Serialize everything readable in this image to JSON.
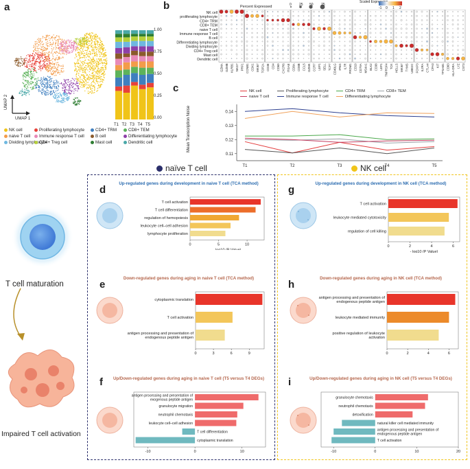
{
  "panel_letters": {
    "a": "a",
    "b": "b",
    "c": "c",
    "d": "d",
    "e": "e",
    "f": "f",
    "g": "g",
    "h": "h",
    "i": "i"
  },
  "umap": {
    "xlabel": "UMAP 1",
    "ylabel": "UMAP 2"
  },
  "stacked": {
    "yticks": [
      "1.00",
      "0.75",
      "0.50",
      "0.25",
      "0.00"
    ],
    "xlabels": [
      "T1",
      "T2",
      "T3",
      "T4",
      "T5"
    ]
  },
  "celltypes": [
    {
      "name": "NK cell",
      "color": "#f0c419"
    },
    {
      "name": "Proliferating lymphocyte",
      "color": "#e8423a"
    },
    {
      "name": "CD4+ TRM",
      "color": "#3f7fbf"
    },
    {
      "name": "CD8+ TEM",
      "color": "#5db35b"
    },
    {
      "name": "naive T cell",
      "color": "#f39c4a"
    },
    {
      "name": "Immune response T cell",
      "color": "#e88ab8"
    },
    {
      "name": "B cell",
      "color": "#8b5a2b"
    },
    {
      "name": "Differentiating lymphocyte",
      "color": "#8e3fa8"
    },
    {
      "name": "Dividing lymphocyte",
      "color": "#6fb8e0"
    },
    {
      "name": "CD4+ Treg cell",
      "color": "#b5cf3a"
    },
    {
      "name": "Mast cell",
      "color": "#2e7d32"
    },
    {
      "name": "Dendritic cell",
      "color": "#4aa8a8"
    }
  ],
  "dotplot": {
    "title_pct": "Percent Expressed",
    "pct_ticks": [
      "0",
      "25",
      "50",
      "75"
    ],
    "title_scaled": "Scaled\nExpression",
    "scale_ticks": [
      "-1",
      "0",
      "1",
      "2"
    ],
    "rows": [
      "NK cell",
      "proliferating lymphocyte",
      "CD4+ TRM",
      "CD8+ TEM",
      "naive T cell",
      "Immune response T cell",
      "B cell",
      "Differentiating lymphocyte",
      "Dividing lymphocyte",
      "CD4+ Treg cell",
      "Mast cell",
      "Dendritic cell"
    ],
    "genes": [
      "GZMA",
      "GZMB",
      "KLRB1",
      "NKG7",
      "PRF1",
      "CCNB1",
      "CDK1",
      "MKI67",
      "TOP2A",
      "CD3E",
      "CD4",
      "CD69",
      "CXCR6",
      "ITGAE",
      "CD8A",
      "CD8B",
      "CCL5",
      "GZMK",
      "CCR7",
      "LEF1",
      "SELL",
      "TCF7",
      "CD40LG",
      "IFNG",
      "IL7R",
      "PRDM1",
      "CD19",
      "CD79A",
      "MS4A1",
      "BLK2",
      "CD38",
      "LEF1",
      "TNFRSF4",
      "TOX",
      "HELLS",
      "MKI67",
      "TYMS",
      "UBE2C",
      "FOXP3",
      "IL2RA",
      "CTLA4",
      "CPA3",
      "KIT",
      "TPSAB1",
      "CD83",
      "HLA-DRA",
      "LYZ",
      "CST3"
    ]
  },
  "linechart": {
    "ylabel": "Mean Transcription Noise",
    "yticks": [
      "0.14",
      "0.13",
      "0.12",
      "0.11"
    ],
    "legend": [
      "NK cell",
      "Proliferating lymphocyte",
      "CD4+ TRM",
      "CD8+ TEM",
      "naive T cell",
      "Immune response T cell",
      "Differentiating lymphocyte"
    ]
  },
  "chart_data": [
    {
      "type": "line",
      "title": "",
      "xlabel": "",
      "ylabel": "Mean Transcription Noise",
      "x": [
        "T1",
        "T2",
        "T3",
        "T4",
        "T5"
      ],
      "ylim": [
        0.105,
        0.145
      ],
      "series": [
        {
          "name": "NK cell",
          "color": "#e23b3b",
          "values": [
            0.1185,
            0.1105,
            0.118,
            0.1125,
            0.115
          ]
        },
        {
          "name": "Proliferating lymphocyte",
          "color": "#555555",
          "values": [
            0.113,
            0.1105,
            0.114,
            0.11,
            0.114
          ]
        },
        {
          "name": "CD4+ TRM",
          "color": "#4aa84a",
          "values": [
            0.1225,
            0.1225,
            0.1235,
            0.12,
            0.1205
          ]
        },
        {
          "name": "CD8+ TEM",
          "color": "#9aa0a6",
          "values": [
            0.12,
            0.1195,
            0.1205,
            0.1175,
            0.1185
          ]
        },
        {
          "name": "naive T cell",
          "color": "#c43c5f",
          "values": [
            0.121,
            0.12,
            0.118,
            0.119,
            0.1195
          ]
        },
        {
          "name": "Immune response T cell",
          "color": "#2b3e8f",
          "values": [
            0.14,
            0.142,
            0.139,
            0.137,
            0.136
          ]
        },
        {
          "name": "Differentiating lymphocyte",
          "color": "#f0a15a",
          "values": [
            0.135,
            0.14,
            0.136,
            0.139,
            0.1385
          ]
        }
      ]
    },
    {
      "type": "bar",
      "id": "d",
      "orientation": "horizontal",
      "title": "Up-regulated genes during development in naive T cell (TCA method)",
      "xlabel": "- log10 (P Value)",
      "xticks": [
        0,
        5,
        10
      ],
      "xlim": [
        0,
        13
      ],
      "categories": [
        "T cell activation",
        "T cell differentiation",
        "regulation of hemopoiesis",
        "leukocyte cell–cell adhesion",
        "lymphocyte proliferation"
      ],
      "values": [
        12.4,
        11.5,
        8.6,
        7.1,
        6.2
      ],
      "colors": [
        "#e8352a",
        "#ec6e2a",
        "#f0a732",
        "#f3c65a",
        "#f1dc8e"
      ]
    },
    {
      "type": "bar",
      "id": "e",
      "orientation": "horizontal",
      "title": "Down-regulated genes during aging in naive T cell (TCA method)",
      "xlabel": "- log10 (P Value)",
      "xticks": [
        0,
        3,
        6,
        9
      ],
      "xlim": [
        0,
        11.5
      ],
      "categories": [
        "cytoplasmic translation",
        "T cell activation",
        "antigen processing and presentation of endogenous peptide antigen"
      ],
      "values": [
        11.2,
        6.2,
        4.9
      ],
      "colors": [
        "#e8352a",
        "#f3c65a",
        "#f1dc8e"
      ]
    },
    {
      "type": "bar",
      "id": "f",
      "orientation": "horizontal",
      "title": "Up/Down-regulated genes during aging in naive T cell (T5 versus T4 DEGs)",
      "xlabel": "- log10 (P Value)",
      "xticks": [
        -10,
        0,
        10
      ],
      "xlim": [
        -13,
        15
      ],
      "categories": [
        "antigen processing and presentation of exogenous peptide antigen",
        "granulocyte migration",
        "neutrophil chemotaxis",
        "leukocyte cell–cell adhesion",
        "T cell differentiation",
        "cytoplasmic translation"
      ],
      "values": [
        13.5,
        10.3,
        9.0,
        8.8,
        -2.7,
        -12.6
      ],
      "colors": [
        "#ef6b6b",
        "#ef6b6b",
        "#ef6b6b",
        "#ef6b6b",
        "#6fb9bf",
        "#6fb9bf"
      ]
    },
    {
      "type": "bar",
      "id": "g",
      "orientation": "horizontal",
      "title": "Up-regulated genes during development in NK cell (TCA method)",
      "xlabel": "- log10 (P Value)",
      "xticks": [
        0,
        2,
        4,
        6
      ],
      "xlim": [
        0,
        6.6
      ],
      "categories": [
        "T cell activation",
        "leukocyte mediated cytotoxicity",
        "regulation of cell killing"
      ],
      "values": [
        6.4,
        5.6,
        5.2
      ],
      "colors": [
        "#e8352a",
        "#f3c65a",
        "#f1dc8e"
      ]
    },
    {
      "type": "bar",
      "id": "h",
      "orientation": "horizontal",
      "title": "Down-regulated genes during aging in NK cell (TCA method)",
      "xlabel": "- log10 (P Value)",
      "xticks": [
        0,
        2,
        4,
        6
      ],
      "xlim": [
        0,
        6.9
      ],
      "categories": [
        "antigen processing and presentation of endogenous peptide antigen",
        "leukocyte mediated immunity",
        "positive regulation of leukocyte activation"
      ],
      "values": [
        6.6,
        6.0,
        5.0
      ],
      "colors": [
        "#e8352a",
        "#ec8a2a",
        "#f1dc8e"
      ]
    },
    {
      "type": "bar",
      "id": "i",
      "orientation": "horizontal",
      "title": "Up/Down-regulated genes during aging in NK cell (T5 versus T4 DEGs)",
      "xlabel": "- log10 (P Value)",
      "xticks": [
        -10,
        0,
        10,
        20
      ],
      "xlim": [
        -13,
        20
      ],
      "categories": [
        "granulocyte chemotaxis",
        "neutrophil chemotaxis",
        "detoxification",
        "natural killer cell mediated immunity",
        "antigen processing and presentation of endogenous peptide antigen",
        "T cell activation"
      ],
      "values": [
        12.7,
        12.0,
        9.0,
        -8.0,
        -10.0,
        -10.5
      ],
      "colors": [
        "#ef6b6b",
        "#ef6b6b",
        "#ef6b6b",
        "#6fb9bf",
        "#6fb9bf",
        "#6fb9bf"
      ]
    }
  ],
  "headers": {
    "naive": "naïve T cell",
    "nk": "NK cell",
    "naive_dot": "#2b2f6b",
    "nk_dot": "#f0c419"
  },
  "left_labels": {
    "maturation": "T cell maturation",
    "impaired": "Impaired T cell activation"
  }
}
